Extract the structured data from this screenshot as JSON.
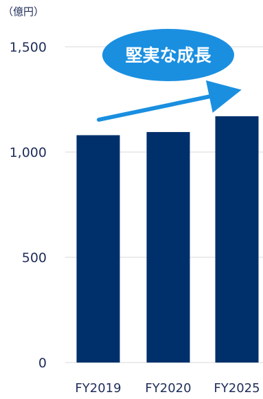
{
  "chart_data": {
    "type": "bar",
    "unit_label": "（億円）",
    "categories": [
      "FY2019",
      "FY2020",
      "FY2025"
    ],
    "values": [
      1080,
      1095,
      1170
    ],
    "ylim": [
      0,
      1500
    ],
    "yticks": [
      0,
      500,
      1000,
      1500
    ],
    "ytick_labels": [
      "0",
      "500",
      "1,000",
      "1,500"
    ],
    "grid": true,
    "annotation": "堅実な成長",
    "colors": {
      "bar": "#00306b",
      "grid": "#d9d9d9",
      "badge": "#1a8fe0",
      "arrow": "#1a8fe0"
    }
  }
}
